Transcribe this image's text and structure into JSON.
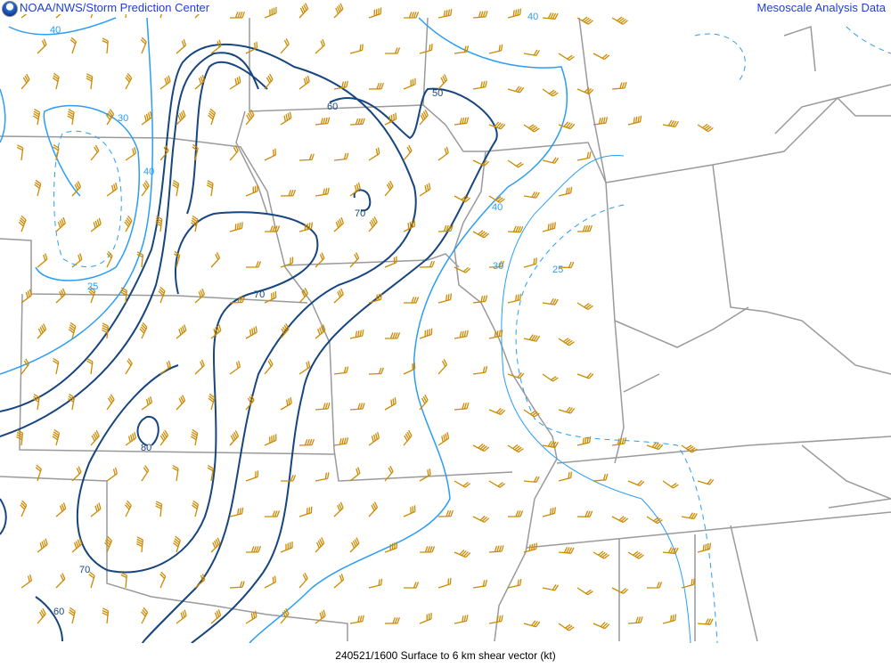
{
  "header": {
    "left_title": "NOAA/NWS/Storm Prediction Center",
    "right_title": "Mesoscale Analysis Data",
    "logo_icon": "noaa-logo-icon"
  },
  "caption": "240521/1600 Surface to 6 km shear vector (kt)",
  "colors": {
    "strong_contour": "#17457f",
    "weak_contour": "#2a9df4",
    "barb": "#cc8a00",
    "border": "#9a9a9a"
  },
  "contour_labels": {
    "light": [
      "40",
      "30",
      "40",
      "25",
      "40",
      "30",
      "25",
      "40"
    ],
    "dark": [
      "60",
      "50",
      "70",
      "70",
      "80",
      "70",
      "60"
    ]
  }
}
